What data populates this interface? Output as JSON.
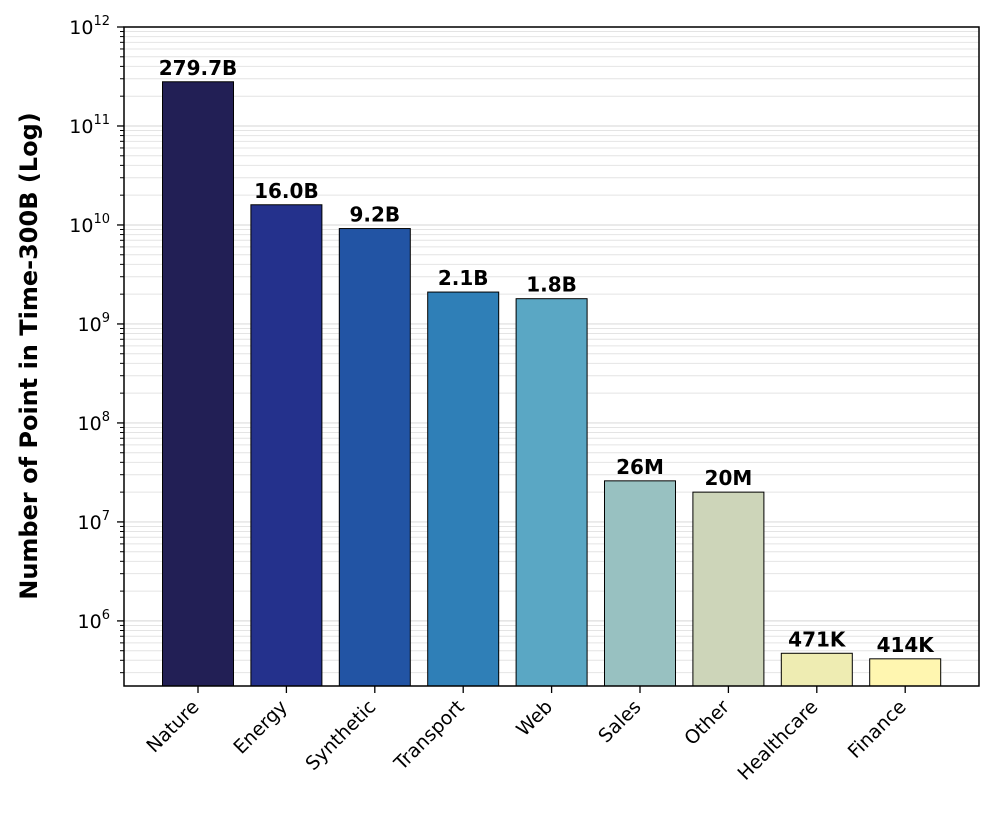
{
  "chart_data": {
    "type": "bar",
    "ylabel": "Number of Point in Time-300B (Log)",
    "xlabel": "",
    "yscale": "log",
    "ylim": [
      220000,
      1000000000000
    ],
    "grid": "y-minor",
    "categories": [
      "Nature",
      "Energy",
      "Synthetic",
      "Transport",
      "Web",
      "Sales",
      "Other",
      "Healthcare",
      "Finance"
    ],
    "values": [
      279700000000,
      16000000000,
      9200000000,
      2100000000,
      1800000000,
      26000000,
      20000000,
      471000,
      414000
    ],
    "bar_labels": [
      "279.7B",
      "16.0B",
      "9.2B",
      "2.1B",
      "1.8B",
      "26M",
      "20M",
      "471K",
      "414K"
    ],
    "colors": [
      "#221f55",
      "#24318c",
      "#2254a4",
      "#2f7fb7",
      "#5aa7c4",
      "#98c1c1",
      "#cdd5b9",
      "#eeecb2",
      "#fff6b0"
    ],
    "y_ticks": [
      {
        "base": "10",
        "exp": "6",
        "value": 1000000
      },
      {
        "base": "10",
        "exp": "7",
        "value": 10000000
      },
      {
        "base": "10",
        "exp": "8",
        "value": 100000000
      },
      {
        "base": "10",
        "exp": "9",
        "value": 1000000000
      },
      {
        "base": "10",
        "exp": "10",
        "value": 10000000000
      },
      {
        "base": "10",
        "exp": "11",
        "value": 100000000000
      },
      {
        "base": "10",
        "exp": "12",
        "value": 1000000000000
      }
    ]
  }
}
